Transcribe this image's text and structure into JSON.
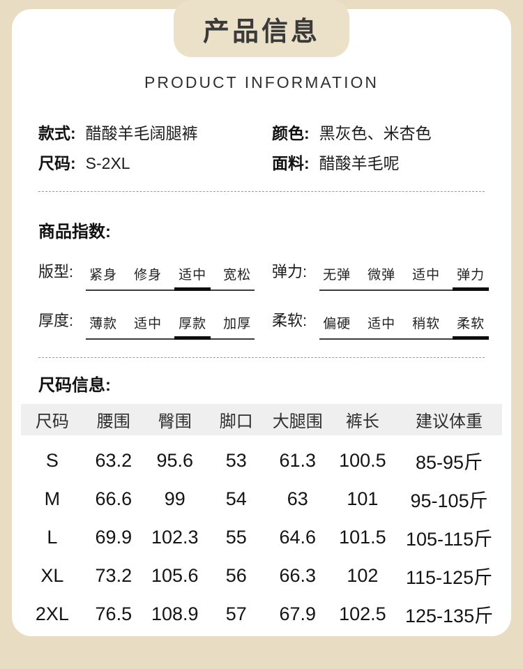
{
  "page": {
    "title": "产品信息",
    "subtitle": "PRODUCT INFORMATION"
  },
  "product_info": {
    "fields": [
      {
        "label": "款式:",
        "value": "醋酸羊毛阔腿裤"
      },
      {
        "label": "颜色:",
        "value": "黑灰色、米杏色"
      },
      {
        "label": "尺码:",
        "value": "S-2XL"
      },
      {
        "label": "面料:",
        "value": "醋酸羊毛呢"
      }
    ]
  },
  "index_section": {
    "heading": "商品指数:",
    "groups": [
      {
        "label": "版型:",
        "options": [
          "紧身",
          "修身",
          "适中",
          "宽松"
        ],
        "selected": 2
      },
      {
        "label": "弹力:",
        "options": [
          "无弹",
          "微弹",
          "适中",
          "弹力"
        ],
        "selected": 3
      },
      {
        "label": "厚度:",
        "options": [
          "薄款",
          "适中",
          "厚款",
          "加厚"
        ],
        "selected": 2
      },
      {
        "label": "柔软:",
        "options": [
          "偏硬",
          "适中",
          "稍软",
          "柔软"
        ],
        "selected": 3
      }
    ]
  },
  "size_section": {
    "heading": "尺码信息:",
    "table": {
      "headers": [
        "尺码",
        "腰围",
        "臀围",
        "脚口",
        "大腿围",
        "裤长",
        "建议体重"
      ],
      "rows": [
        [
          "S",
          "63.2",
          "95.6",
          "53",
          "61.3",
          "100.5",
          "85-95斤"
        ],
        [
          "M",
          "66.6",
          "99",
          "54",
          "63",
          "101",
          "95-105斤"
        ],
        [
          "L",
          "69.9",
          "102.3",
          "55",
          "64.6",
          "101.5",
          "105-115斤"
        ],
        [
          "XL",
          "73.2",
          "105.6",
          "56",
          "66.3",
          "102",
          "115-125斤"
        ],
        [
          "2XL",
          "76.5",
          "108.9",
          "57",
          "67.9",
          "102.5",
          "125-135斤"
        ]
      ]
    }
  },
  "colors": {
    "background": "#e8ddc3",
    "banner": "#ebe1c9",
    "card": "#ffffff",
    "table_header_bg": "#efefef",
    "selected_bar": "#0d0d0d",
    "text": "#222222"
  }
}
